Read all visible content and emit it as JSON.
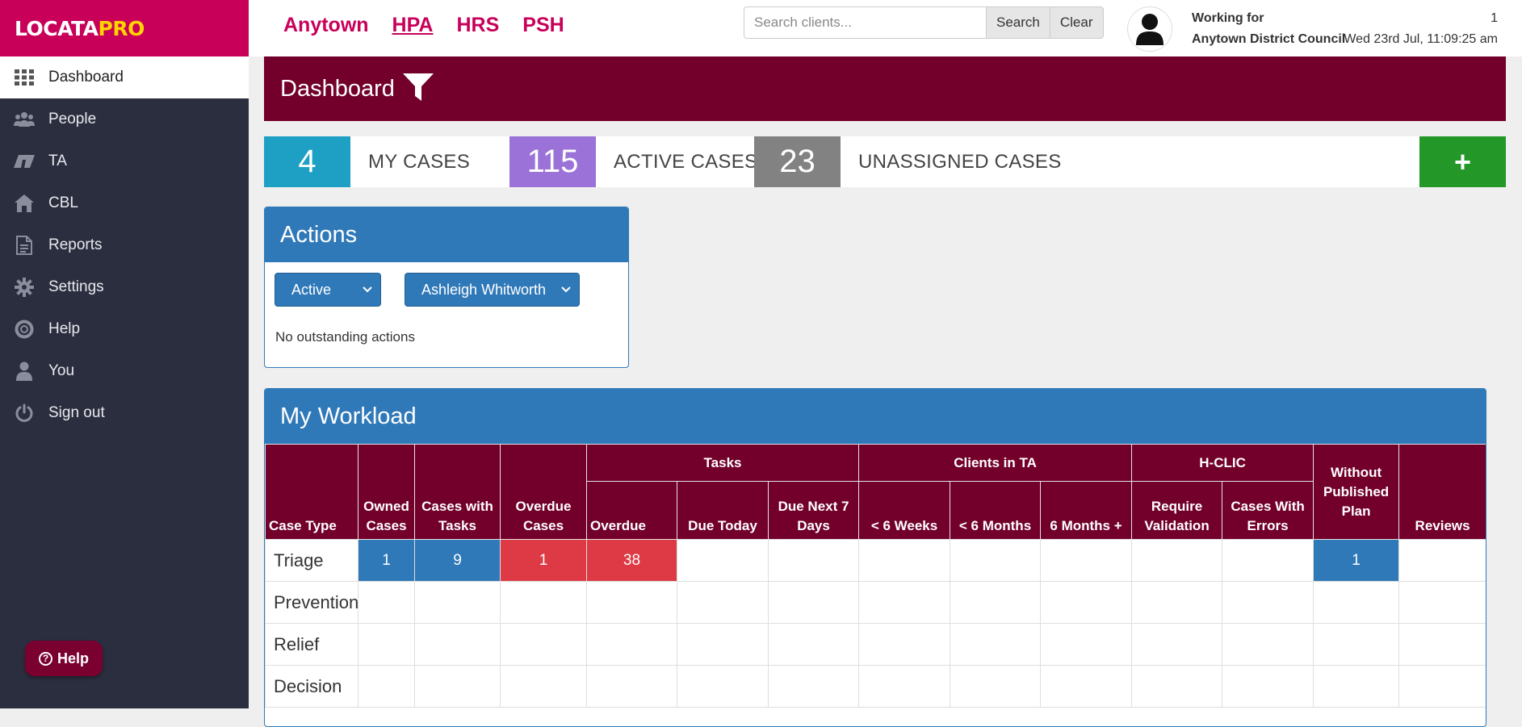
{
  "logo": {
    "main": "LOCATA",
    "accent": "PRO"
  },
  "sidebar": {
    "items": [
      {
        "label": "Dashboard",
        "icon": "grid-icon"
      },
      {
        "label": "People",
        "icon": "people-icon"
      },
      {
        "label": "TA",
        "icon": "ta-icon"
      },
      {
        "label": "CBL",
        "icon": "home-icon"
      },
      {
        "label": "Reports",
        "icon": "document-icon"
      },
      {
        "label": "Settings",
        "icon": "gear-icon"
      },
      {
        "label": "Help",
        "icon": "lifebuoy-icon"
      },
      {
        "label": "You",
        "icon": "user-icon"
      },
      {
        "label": "Sign out",
        "icon": "power-icon"
      }
    ],
    "help_button": "Help"
  },
  "topbar": {
    "links": [
      "Anytown",
      "HPA",
      "HRS",
      "PSH"
    ],
    "search_placeholder": "Search clients...",
    "search_button": "Search",
    "clear_button": "Clear",
    "working_for_label": "Working for",
    "council": "Anytown District Council",
    "notification_count": "1",
    "datetime": "Wed 23rd Jul, 11:09:25 am"
  },
  "dashboard": {
    "title": "Dashboard"
  },
  "stats": {
    "my_cases": {
      "value": "4",
      "label": "MY CASES"
    },
    "active_cases": {
      "value": "115",
      "label": "ACTIVE CASES"
    },
    "unassigned_cases": {
      "value": "23",
      "label": "UNASSIGNED CASES"
    },
    "add_button": "+"
  },
  "actions": {
    "title": "Actions",
    "status_select": "Active",
    "user_select": "Ashleigh Whitworth",
    "empty_text": "No outstanding actions"
  },
  "workload": {
    "title": "My Workload",
    "group_headers": {
      "tasks": "Tasks",
      "clients_in_ta": "Clients in TA",
      "hclic": "H-CLIC"
    },
    "columns": {
      "case_type": "Case Type",
      "owned": "Owned Cases",
      "with_tasks": "Cases with Tasks",
      "overdue_cases": "Overdue Cases",
      "overdue": "Overdue",
      "due_today": "Due Today",
      "due_next7": "Due Next 7 Days",
      "lt6w": "< 6 Weeks",
      "lt6m": "< 6 Months",
      "gt6m": "6 Months +",
      "require_validation": "Require Validation",
      "with_errors": "Cases With Errors",
      "without_plan": "Without Published Plan",
      "reviews": "Reviews"
    },
    "rows": [
      {
        "type": "Triage",
        "owned": "1",
        "with_tasks": "9",
        "overdue_cases": "1",
        "overdue": "38",
        "due_today": "",
        "due_next7": "",
        "lt6w": "",
        "lt6m": "",
        "gt6m": "",
        "require_validation": "",
        "with_errors": "",
        "without_plan": "1",
        "reviews": ""
      },
      {
        "type": "Prevention",
        "owned": "",
        "with_tasks": "",
        "overdue_cases": "",
        "overdue": "",
        "due_today": "",
        "due_next7": "",
        "lt6w": "",
        "lt6m": "",
        "gt6m": "",
        "require_validation": "",
        "with_errors": "",
        "without_plan": "",
        "reviews": ""
      },
      {
        "type": "Relief",
        "owned": "",
        "with_tasks": "",
        "overdue_cases": "",
        "overdue": "",
        "due_today": "",
        "due_next7": "",
        "lt6w": "",
        "lt6m": "",
        "gt6m": "",
        "require_validation": "",
        "with_errors": "",
        "without_plan": "",
        "reviews": ""
      },
      {
        "type": "Decision",
        "owned": "",
        "with_tasks": "",
        "overdue_cases": "",
        "overdue": "",
        "due_today": "",
        "due_next7": "",
        "lt6w": "",
        "lt6m": "",
        "gt6m": "",
        "require_validation": "",
        "with_errors": "",
        "without_plan": "",
        "reviews": ""
      }
    ]
  },
  "colors": {
    "brand": "#c8005a",
    "maroon": "#72002a",
    "blue": "#3079b8",
    "red": "#de3a45",
    "teal": "#1ea0c4",
    "purple": "#9b72d8",
    "gray": "#828282",
    "green": "#239728",
    "sidebar": "#2b2e3f"
  }
}
